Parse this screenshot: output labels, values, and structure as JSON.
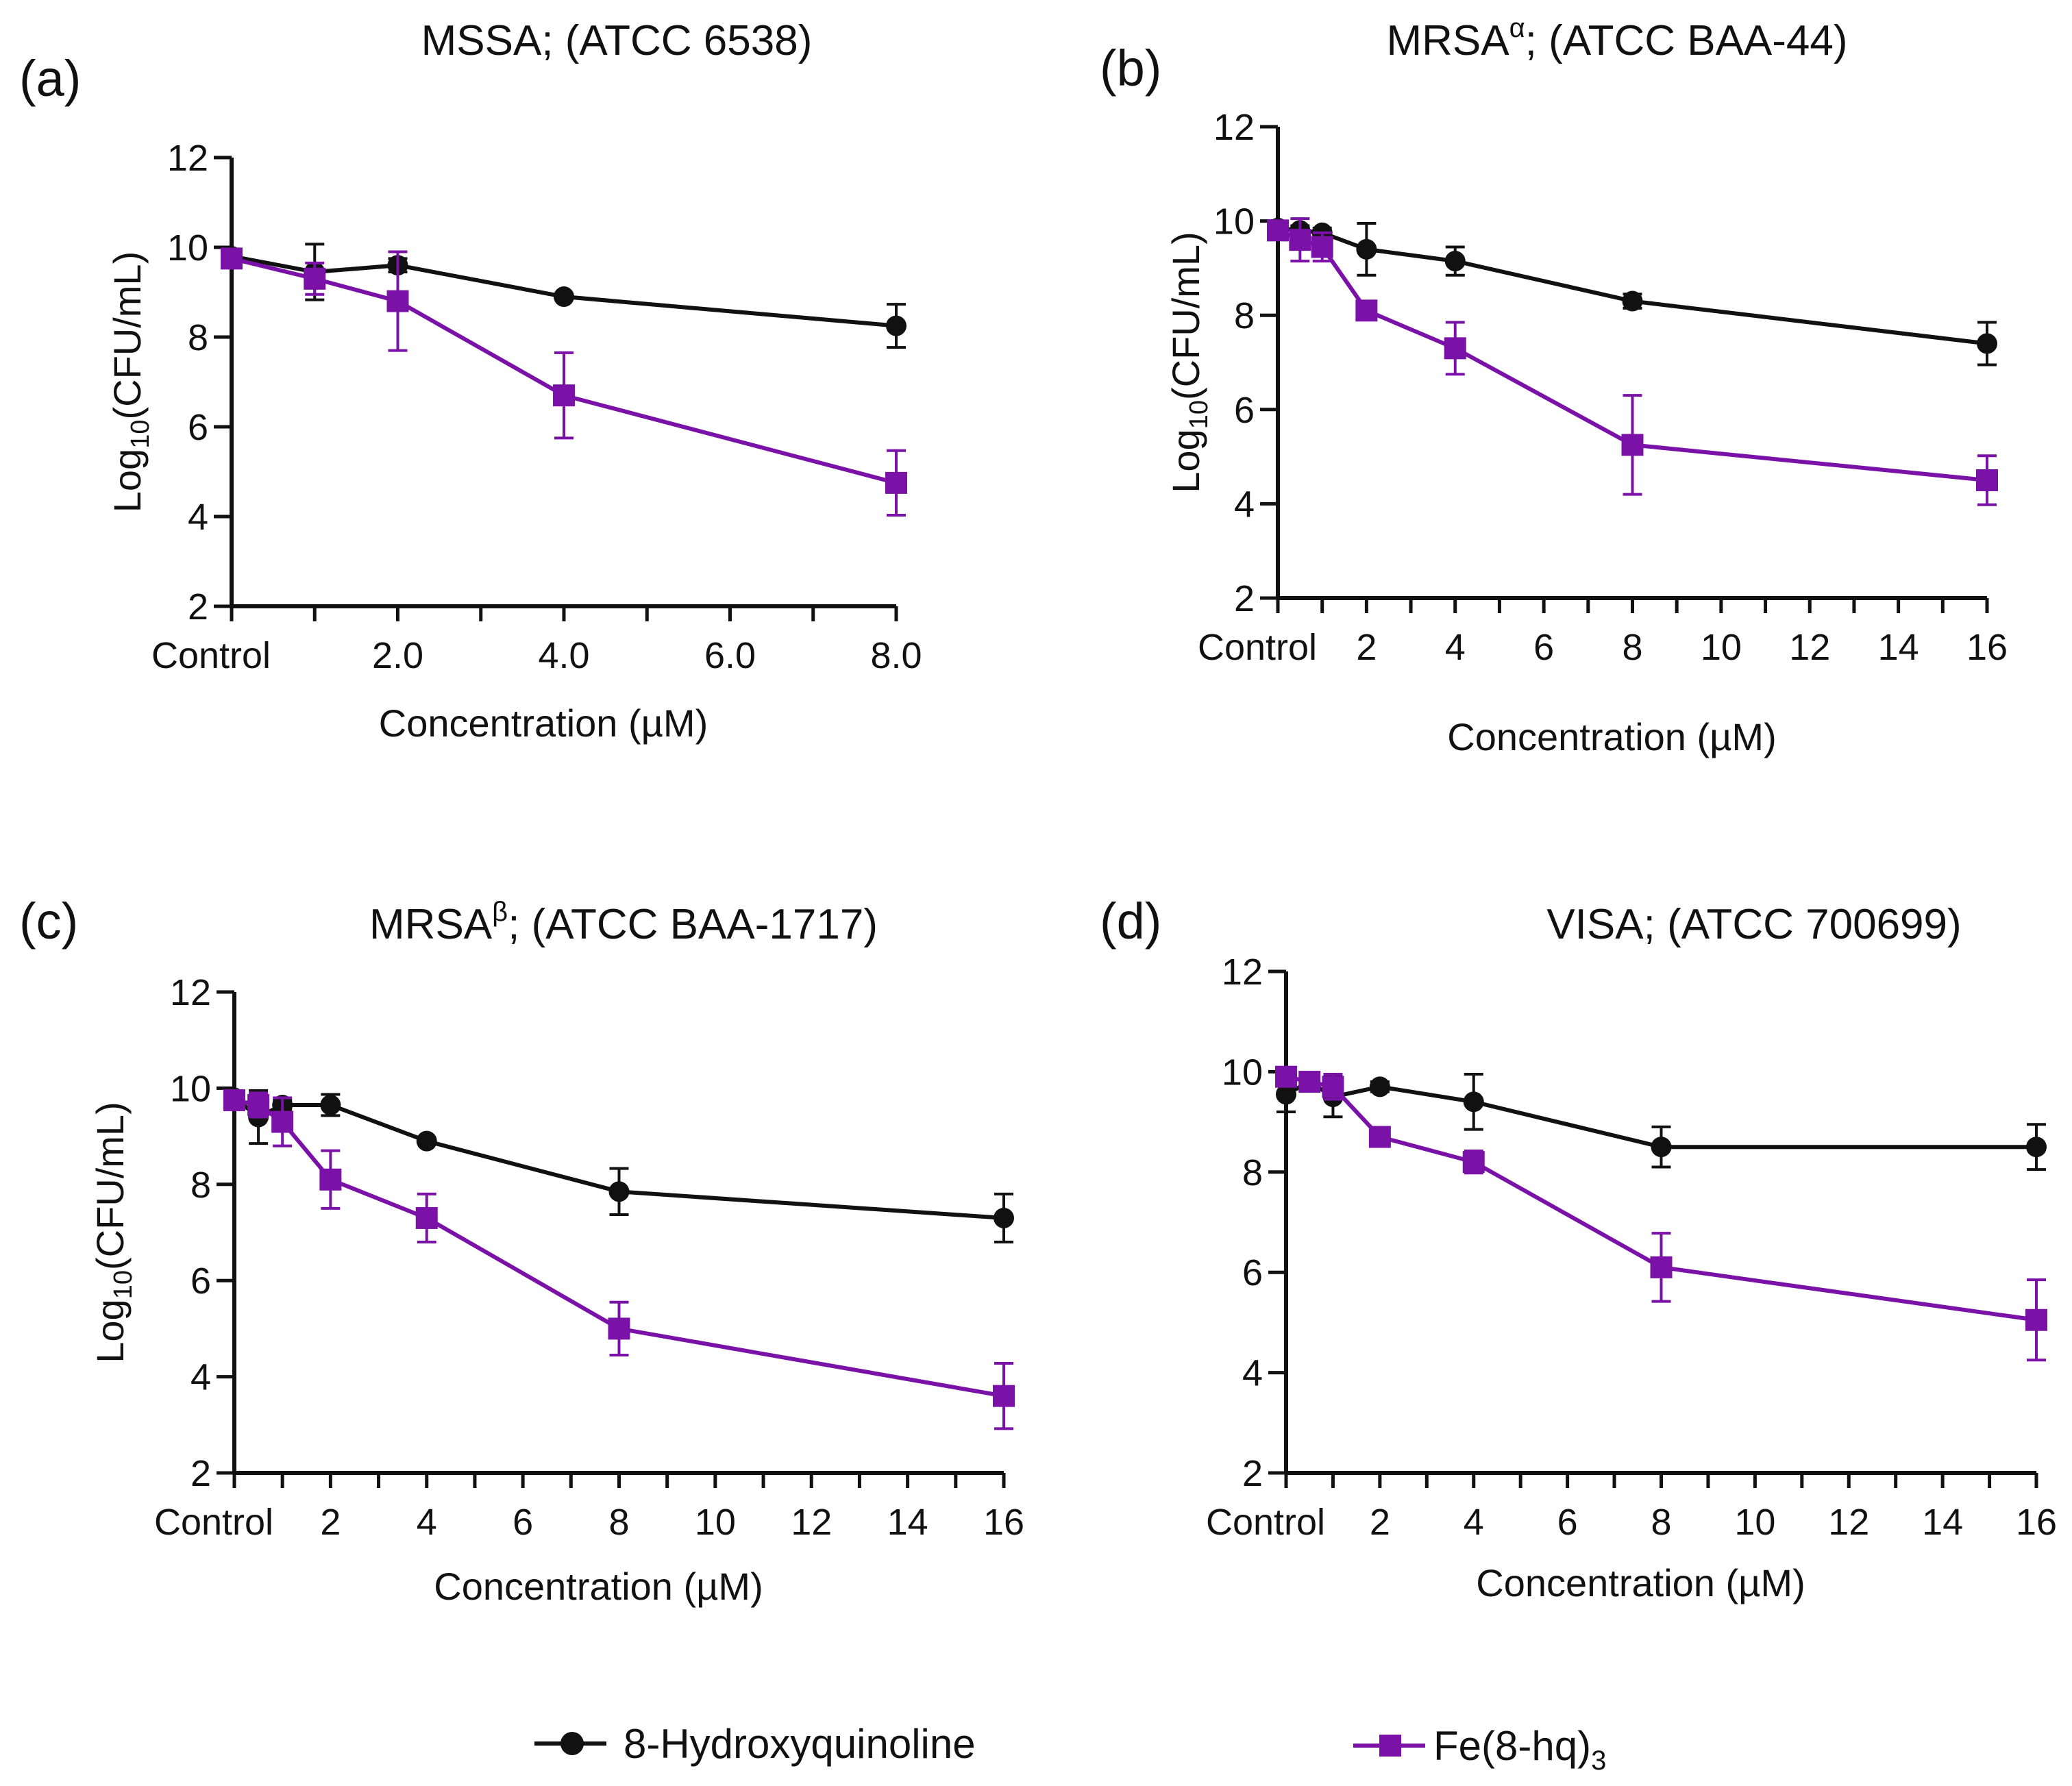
{
  "colors": {
    "hq": "#111111",
    "fe": "#7b12a8"
  },
  "legend": {
    "series_a": "8-Hydroxyquinoline",
    "series_b_main": "Fe(8-hq)",
    "series_b_sub": "3"
  },
  "chart_data": [
    {
      "type": "line",
      "panel": "(a)",
      "title_main": "MSSA",
      "title_sup": "",
      "title_rest": "; (ATCC 6538)",
      "xlabel": "Concentration (µM)",
      "ylabel_main": "Log",
      "ylabel_sub": "10",
      "ylabel_rest": "(CFU/mL)",
      "xlim": [
        0,
        8
      ],
      "ylim": [
        2,
        12
      ],
      "xticks": [
        0,
        1,
        2,
        3,
        4,
        5,
        6,
        7,
        8
      ],
      "xtick_labels": [
        {
          "x": 0,
          "label": "Control"
        },
        {
          "x": 2,
          "label": "2.0"
        },
        {
          "x": 4,
          "label": "4.0"
        },
        {
          "x": 6,
          "label": "6.0"
        },
        {
          "x": 8,
          "label": "8.0"
        }
      ],
      "yticks": [
        2,
        4,
        6,
        8,
        10,
        12
      ],
      "series": [
        {
          "name": "8-Hydroxyquinoline",
          "marker": "circle",
          "x": [
            0,
            1,
            2,
            4,
            8
          ],
          "y": [
            9.8,
            9.45,
            9.6,
            8.9,
            8.25
          ],
          "err": [
            0.1,
            0.62,
            0.15,
            0.05,
            0.48
          ]
        },
        {
          "name": "Fe(8-hq)3",
          "marker": "square",
          "x": [
            0,
            1,
            2,
            4,
            8
          ],
          "y": [
            9.75,
            9.3,
            8.8,
            6.7,
            4.75
          ],
          "err": [
            0.1,
            0.35,
            1.1,
            0.95,
            0.72
          ]
        }
      ]
    },
    {
      "type": "line",
      "panel": "(b)",
      "title_main": "MRSA",
      "title_sup": "α",
      "title_rest": "; (ATCC BAA-44)",
      "xlabel": "Concentration (µM)",
      "ylabel_main": "Log",
      "ylabel_sub": "10",
      "ylabel_rest": "(CFU/mL)",
      "xlim": [
        0,
        16
      ],
      "ylim": [
        2,
        12
      ],
      "xticks": [
        0,
        1,
        2,
        3,
        4,
        5,
        6,
        7,
        8,
        9,
        10,
        11,
        12,
        13,
        14,
        15,
        16
      ],
      "xtick_labels": [
        {
          "x": 0,
          "label": "Control"
        },
        {
          "x": 2,
          "label": "2"
        },
        {
          "x": 4,
          "label": "4"
        },
        {
          "x": 6,
          "label": "6"
        },
        {
          "x": 8,
          "label": "8"
        },
        {
          "x": 10,
          "label": "10"
        },
        {
          "x": 12,
          "label": "12"
        },
        {
          "x": 14,
          "label": "14"
        },
        {
          "x": 16,
          "label": "16"
        }
      ],
      "yticks": [
        2,
        4,
        6,
        8,
        10,
        12
      ],
      "series": [
        {
          "name": "8-Hydroxyquinoline",
          "marker": "circle",
          "x": [
            0,
            0.5,
            1,
            2,
            4,
            8,
            16
          ],
          "y": [
            9.85,
            9.8,
            9.75,
            9.4,
            9.15,
            8.3,
            7.4
          ],
          "err": [
            0.1,
            0.1,
            0.1,
            0.55,
            0.3,
            0.15,
            0.45
          ]
        },
        {
          "name": "Fe(8-hq)3",
          "marker": "square",
          "x": [
            0,
            0.5,
            1,
            2,
            4,
            8,
            16
          ],
          "y": [
            9.8,
            9.6,
            9.45,
            8.1,
            7.3,
            5.25,
            4.5
          ],
          "err": [
            0.1,
            0.45,
            0.3,
            0.1,
            0.55,
            1.05,
            0.52
          ]
        }
      ]
    },
    {
      "type": "line",
      "panel": "(c)",
      "title_main": "MRSA",
      "title_sup": "β",
      "title_rest": "; (ATCC BAA-1717)",
      "xlabel": "Concentration (µM)",
      "ylabel_main": "Log",
      "ylabel_sub": "10",
      "ylabel_rest": "(CFU/mL)",
      "xlim": [
        0,
        16
      ],
      "ylim": [
        2,
        12
      ],
      "xticks": [
        0,
        1,
        2,
        3,
        4,
        5,
        6,
        7,
        8,
        9,
        10,
        11,
        12,
        13,
        14,
        15,
        16
      ],
      "xtick_labels": [
        {
          "x": 0,
          "label": "Control"
        },
        {
          "x": 2,
          "label": "2"
        },
        {
          "x": 4,
          "label": "4"
        },
        {
          "x": 6,
          "label": "6"
        },
        {
          "x": 8,
          "label": "8"
        },
        {
          "x": 10,
          "label": "10"
        },
        {
          "x": 12,
          "label": "12"
        },
        {
          "x": 14,
          "label": "14"
        },
        {
          "x": 16,
          "label": "16"
        }
      ],
      "yticks": [
        2,
        4,
        6,
        8,
        10,
        12
      ],
      "series": [
        {
          "name": "8-Hydroxyquinoline",
          "marker": "circle",
          "x": [
            0,
            0.5,
            1,
            2,
            4,
            8,
            16
          ],
          "y": [
            9.8,
            9.4,
            9.65,
            9.65,
            8.9,
            7.85,
            7.3
          ],
          "err": [
            0.1,
            0.55,
            0.1,
            0.22,
            0.05,
            0.48,
            0.5
          ]
        },
        {
          "name": "Fe(8-hq)3",
          "marker": "square",
          "x": [
            0,
            0.5,
            1,
            2,
            4,
            8,
            16
          ],
          "y": [
            9.75,
            9.65,
            9.3,
            8.1,
            7.3,
            5.0,
            3.6
          ],
          "err": [
            0.1,
            0.25,
            0.5,
            0.6,
            0.5,
            0.55,
            0.68
          ]
        }
      ]
    },
    {
      "type": "line",
      "panel": "(d)",
      "title_main": "VISA",
      "title_sup": "",
      "title_rest": "; (ATCC 700699)",
      "xlabel": "Concentration (µM)",
      "ylabel_main": "",
      "ylabel_sub": "",
      "ylabel_rest": "",
      "xlim": [
        0,
        16
      ],
      "ylim": [
        2,
        12
      ],
      "xticks": [
        0,
        1,
        2,
        3,
        4,
        5,
        6,
        7,
        8,
        9,
        10,
        11,
        12,
        13,
        14,
        15,
        16
      ],
      "xtick_labels": [
        {
          "x": 0,
          "label": "Control"
        },
        {
          "x": 2,
          "label": "2"
        },
        {
          "x": 4,
          "label": "4"
        },
        {
          "x": 6,
          "label": "6"
        },
        {
          "x": 8,
          "label": "8"
        },
        {
          "x": 10,
          "label": "10"
        },
        {
          "x": 12,
          "label": "12"
        },
        {
          "x": 14,
          "label": "14"
        },
        {
          "x": 16,
          "label": "16"
        }
      ],
      "yticks": [
        2,
        4,
        6,
        8,
        10,
        12
      ],
      "series": [
        {
          "name": "8-Hydroxyquinoline",
          "marker": "circle",
          "x": [
            0,
            0.5,
            1,
            2,
            4,
            8,
            16
          ],
          "y": [
            9.55,
            9.8,
            9.5,
            9.7,
            9.4,
            8.5,
            8.5
          ],
          "err": [
            0.35,
            0.1,
            0.4,
            0.1,
            0.55,
            0.4,
            0.45
          ]
        },
        {
          "name": "Fe(8-hq)3",
          "marker": "square",
          "x": [
            0,
            0.5,
            1,
            2,
            4,
            8,
            16
          ],
          "y": [
            9.9,
            9.8,
            9.7,
            8.7,
            8.2,
            6.1,
            5.05
          ],
          "err": [
            0.1,
            0.1,
            0.25,
            0.1,
            0.22,
            0.68,
            0.8
          ]
        }
      ]
    }
  ]
}
